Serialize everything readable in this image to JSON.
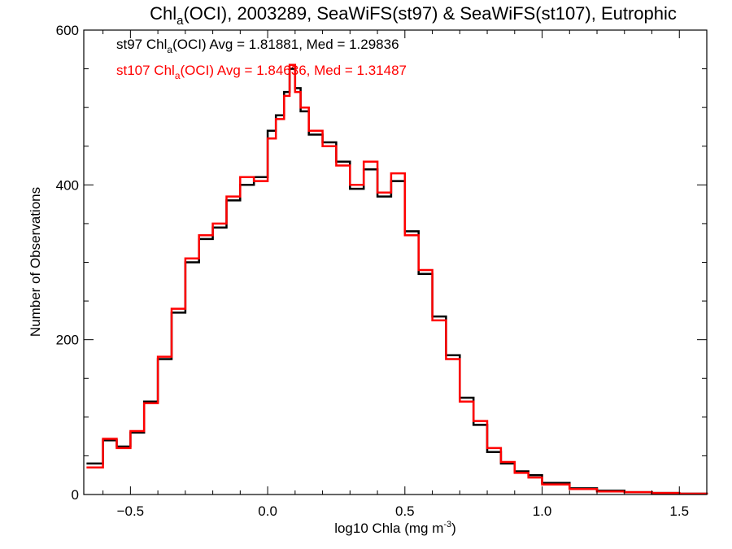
{
  "chart_data": {
    "type": "line",
    "step": true,
    "title": {
      "prefix": "Chl",
      "sub": "a",
      "suffix": "(OCI), 2003289, SeaWiFS(st97) & SeaWiFS(st107), Eutrophic"
    },
    "xlabel": {
      "main": "log10 Chla (mg m",
      "sup": "-3",
      "close": ")"
    },
    "ylabel": "Number of Observations",
    "xlim": [
      -0.67,
      1.6
    ],
    "ylim": [
      0,
      600
    ],
    "xticks": [
      -0.5,
      0.0,
      0.5,
      1.0,
      1.5
    ],
    "xtick_labels": [
      "−0.5",
      "0.0",
      "0.5",
      "1.0",
      "1.5"
    ],
    "yticks": [
      0,
      200,
      400,
      600
    ],
    "ytick_labels": [
      "0",
      "200",
      "400",
      "600"
    ],
    "grid": false,
    "legend_position": "top-left",
    "series": [
      {
        "name": "st97",
        "color": "#000000",
        "legend": {
          "prefix": "st97 Chl",
          "sub": "a",
          "suffix": "(OCI) Avg = 1.81881, Med = 1.29836"
        },
        "x": [
          -0.66,
          -0.6,
          -0.55,
          -0.5,
          -0.45,
          -0.4,
          -0.35,
          -0.3,
          -0.25,
          -0.2,
          -0.15,
          -0.1,
          -0.05,
          0.0,
          0.03,
          0.06,
          0.08,
          0.1,
          0.12,
          0.15,
          0.2,
          0.25,
          0.3,
          0.35,
          0.4,
          0.45,
          0.5,
          0.55,
          0.6,
          0.65,
          0.7,
          0.75,
          0.8,
          0.85,
          0.9,
          0.95,
          1.0,
          1.1,
          1.2,
          1.3,
          1.4,
          1.5,
          1.6
        ],
        "y": [
          40,
          70,
          62,
          80,
          120,
          175,
          235,
          300,
          330,
          345,
          380,
          400,
          410,
          470,
          490,
          520,
          550,
          525,
          495,
          465,
          455,
          430,
          395,
          420,
          385,
          405,
          340,
          285,
          230,
          180,
          125,
          90,
          55,
          40,
          30,
          25,
          15,
          8,
          5,
          3,
          2,
          1,
          0
        ]
      },
      {
        "name": "st107",
        "color": "#ff0000",
        "legend": {
          "prefix": "st107 Chl",
          "sub": "a",
          "suffix": "(OCI) Avg = 1.84636, Med = 1.31487"
        },
        "x": [
          -0.66,
          -0.6,
          -0.55,
          -0.5,
          -0.45,
          -0.4,
          -0.35,
          -0.3,
          -0.25,
          -0.2,
          -0.15,
          -0.1,
          -0.05,
          0.0,
          0.03,
          0.06,
          0.08,
          0.1,
          0.12,
          0.15,
          0.2,
          0.25,
          0.3,
          0.35,
          0.4,
          0.45,
          0.5,
          0.55,
          0.6,
          0.65,
          0.7,
          0.75,
          0.8,
          0.85,
          0.9,
          0.95,
          1.0,
          1.1,
          1.2,
          1.3,
          1.4,
          1.5,
          1.6
        ],
        "y": [
          35,
          72,
          60,
          82,
          118,
          178,
          240,
          305,
          335,
          350,
          385,
          410,
          405,
          460,
          485,
          515,
          555,
          520,
          500,
          470,
          450,
          425,
          400,
          430,
          390,
          415,
          335,
          290,
          225,
          175,
          120,
          95,
          60,
          42,
          28,
          22,
          13,
          7,
          4,
          3,
          2,
          1,
          0
        ]
      }
    ]
  }
}
